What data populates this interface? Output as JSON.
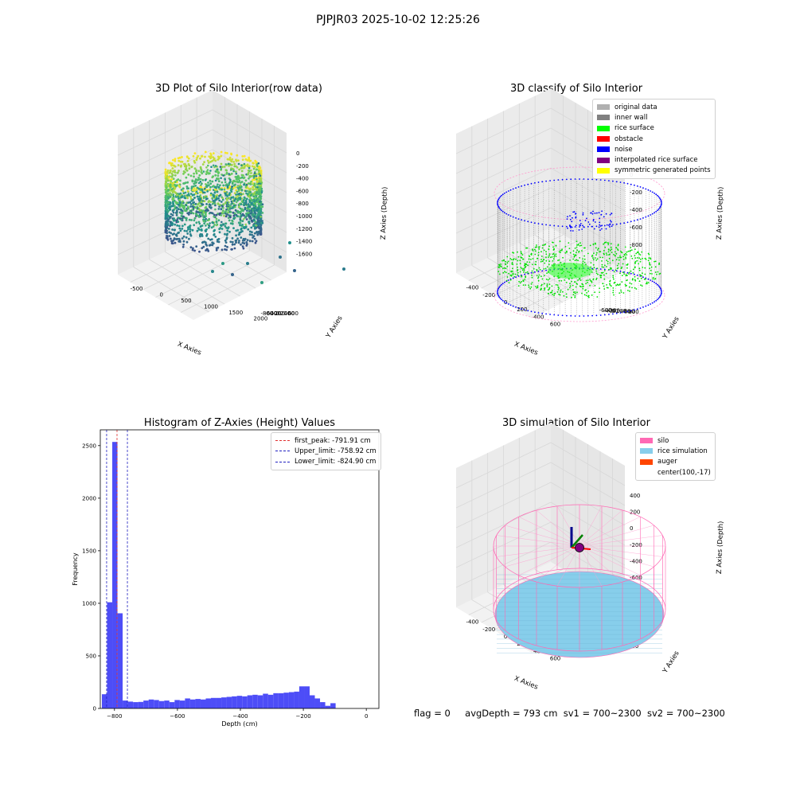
{
  "figure": {
    "suptitle": "PJPJR03 2025-10-02 12:25:26",
    "status": {
      "flag": "flag = 0",
      "avg_depth": "avgDepth = 793 cm",
      "sv1": "sv1 = 700~2300",
      "sv2": "sv2 = 700~2300"
    }
  },
  "chart_data": [
    {
      "type": "scatter",
      "title": "3D Plot of Silo Interior(row data)",
      "xlabel": "X Axies",
      "ylabel": "Y Axies",
      "zlabel": "Z Axies (Depth)",
      "x_ticks": [
        "-500",
        "0",
        "500",
        "1000",
        "1500",
        "2000"
      ],
      "y_ticks": [
        "-800",
        "-600",
        "-400",
        "-200",
        "0",
        "200",
        "400",
        "600"
      ],
      "z_ticks": [
        "0",
        "-200",
        "-400",
        "-600",
        "-800",
        "-1000",
        "-1200",
        "-1400",
        "-1600"
      ],
      "xlim": [
        -600,
        2200
      ],
      "ylim": [
        -900,
        700
      ],
      "zlim": [
        -1700,
        100
      ],
      "colormap": "viridis",
      "grid": true
    },
    {
      "type": "scatter",
      "title": "3D classify of Silo Interior",
      "xlabel": "X Axies",
      "ylabel": "Y Axies",
      "zlabel": "Z Axies (Depth)",
      "x_ticks": [
        "-400",
        "-200",
        "0",
        "200",
        "400",
        "600"
      ],
      "y_ticks": [
        "-600",
        "-400",
        "-200",
        "0",
        "200",
        "400",
        "600",
        "800"
      ],
      "z_ticks": [
        "200",
        "0",
        "-200",
        "-400",
        "-600",
        "-800"
      ],
      "legend": {
        "position": "top-right",
        "entries": [
          {
            "label": "original data",
            "color": "#b0b0b0"
          },
          {
            "label": "inner wall",
            "color": "#808080"
          },
          {
            "label": "rice surface",
            "color": "#00ff00"
          },
          {
            "label": "obstacle",
            "color": "#ff0000"
          },
          {
            "label": "noise",
            "color": "#0000ff"
          },
          {
            "label": "interpolated rice surface",
            "color": "#800080"
          },
          {
            "label": "symmetric generated points",
            "color": "#ffff00"
          }
        ]
      },
      "grid": true
    },
    {
      "type": "bar",
      "title": "Histogram of Z-Axies (Height) Values",
      "xlabel": "Depth (cm)",
      "ylabel": "Frequency",
      "xlim": [
        -845,
        40
      ],
      "ylim": [
        0,
        2650
      ],
      "x_ticks": [
        -800,
        -600,
        -400,
        -200,
        0
      ],
      "y_ticks": [
        0,
        500,
        1000,
        1500,
        2000,
        2500
      ],
      "bar_color": "#4d4df7",
      "bin_start": -840,
      "bin_width": 16.5,
      "values": [
        135,
        1010,
        2535,
        905,
        75,
        65,
        60,
        62,
        75,
        85,
        80,
        70,
        75,
        60,
        80,
        75,
        95,
        85,
        90,
        85,
        95,
        100,
        100,
        105,
        110,
        115,
        120,
        115,
        125,
        130,
        125,
        140,
        130,
        145,
        145,
        150,
        155,
        160,
        210,
        210,
        125,
        95,
        60,
        25,
        50
      ],
      "reference_lines": [
        {
          "label": "first_peak: -791.91 cm",
          "x": -791.91,
          "color": "#e03030"
        },
        {
          "label": "Upper_limit: -758.92 cm",
          "x": -758.92,
          "color": "#2020c0"
        },
        {
          "label": "Lower_limit: -824.90 cm",
          "x": -824.9,
          "color": "#2020c0"
        }
      ],
      "legend": {
        "position": "top-right"
      },
      "grid": false
    },
    {
      "type": "scatter",
      "title": "3D simulation of Silo Interior",
      "xlabel": "X Axies",
      "ylabel": "Y Axies",
      "zlabel": "Z Axies (Depth)",
      "x_ticks": [
        "-400",
        "-200",
        "0",
        "200",
        "400",
        "600"
      ],
      "y_ticks": [
        "-600",
        "-400",
        "-200",
        "0",
        "200",
        "400",
        "600"
      ],
      "z_ticks": [
        "400",
        "200",
        "0",
        "-200",
        "-400",
        "-600",
        "-800"
      ],
      "legend": {
        "position": "top-right",
        "entries": [
          {
            "label": "silo",
            "color": "#ff69b4"
          },
          {
            "label": "rice simulation",
            "color": "#87ceeb"
          },
          {
            "label": "auger",
            "color": "#ff4500"
          },
          {
            "label": "center(100,-17)",
            "color": ""
          }
        ]
      },
      "grid": true
    }
  ]
}
